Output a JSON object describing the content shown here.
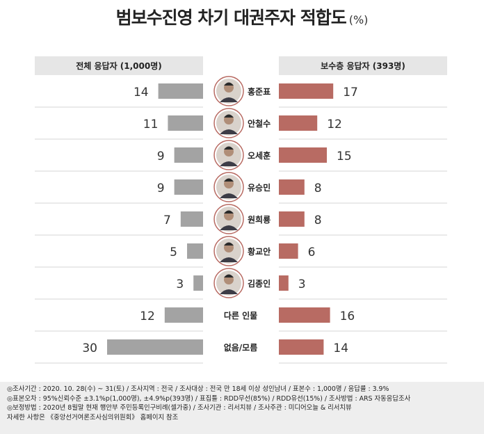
{
  "title": "범보수진영 차기 대권주자 적합도",
  "title_unit": "(%)",
  "chart_data": {
    "type": "bar",
    "title": "범보수진영 차기 대권주자 적합도",
    "unit": "(%)",
    "categories": [
      "홍준표",
      "안철수",
      "오세훈",
      "유승민",
      "원희룡",
      "황교안",
      "김종인",
      "다른 인물",
      "없음/모름"
    ],
    "series": [
      {
        "name": "전체 응답자 (1,000명)",
        "values": [
          14,
          11,
          9,
          9,
          7,
          5,
          3,
          12,
          30
        ],
        "color": "#a3a3a3"
      },
      {
        "name": "보수층 응답자 (393명)",
        "values": [
          17,
          12,
          15,
          8,
          8,
          6,
          3,
          16,
          14
        ],
        "color": "#b86b63"
      }
    ],
    "xlim": [
      0,
      30
    ],
    "has_portrait": [
      true,
      true,
      true,
      true,
      true,
      true,
      true,
      false,
      false
    ]
  },
  "colors": {
    "header_bg": "#e6e6e6",
    "divider": "#d4d4d4",
    "left_bar": "#a3a3a3",
    "right_bar": "#b86b63",
    "portrait_ring": "#b86b63"
  },
  "footer": {
    "lines": [
      "◎조사기간 : 2020. 10. 28(수) ~ 31(토) / 조사지역 : 전국 / 조사대상 : 전국 만 18세 이상 성인남녀 / 표본수 : 1,000명 / 응답률 : 3.9%",
      "◎표본오차 : 95%신뢰수준 ±3.1%p(1,000명), ±4.9%p(393명) / 표집틀 : RDD무선(85%) / RDD유선(15%) / 조사방법 : ARS 자동응답조사",
      "◎보정방법 : 2020년 8월말 현재 행안부 주민등록인구비례(셀가중) / 조사기관 : 리서치뷰 / 조사주관 : 미디어오늘 & 리서치뷰",
      "자세한 사항은 《중앙선거여론조사심의위원회》 홈페이지 참조"
    ]
  }
}
